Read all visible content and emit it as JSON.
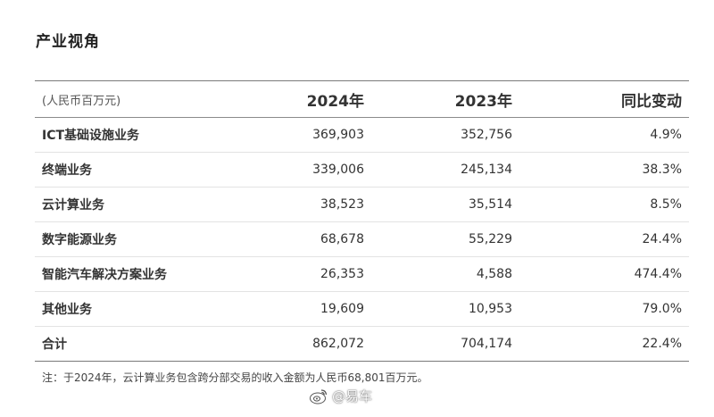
{
  "page": {
    "section_title": "产业视角"
  },
  "table": {
    "unit_label": "(人民币百万元)",
    "col_2024": "2024年",
    "col_2023": "2023年",
    "col_change": "同比变动",
    "rows": [
      {
        "name": "ICT基础设施业务",
        "v2024": "369,903",
        "v2023": "352,756",
        "change": "4.9%"
      },
      {
        "name": "终端业务",
        "v2024": "339,006",
        "v2023": "245,134",
        "change": "38.3%"
      },
      {
        "name": "云计算业务",
        "v2024": "38,523",
        "v2023": "35,514",
        "change": "8.5%"
      },
      {
        "name": "数字能源业务",
        "v2024": "68,678",
        "v2023": "55,229",
        "change": "24.4%"
      },
      {
        "name": "智能汽车解决方案业务",
        "v2024": "26,353",
        "v2023": "4,588",
        "change": "474.4%"
      },
      {
        "name": "其他业务",
        "v2024": "19,609",
        "v2023": "10,953",
        "change": "79.0%"
      },
      {
        "name": "合计",
        "v2024": "862,072",
        "v2023": "704,174",
        "change": "22.4%"
      }
    ]
  },
  "footnote": "注：于2024年，云计算业务包含跨分部交易的收入金额为人民币68,801百万元。",
  "watermark": {
    "icon": "weibo-icon",
    "text": "@易车"
  }
}
